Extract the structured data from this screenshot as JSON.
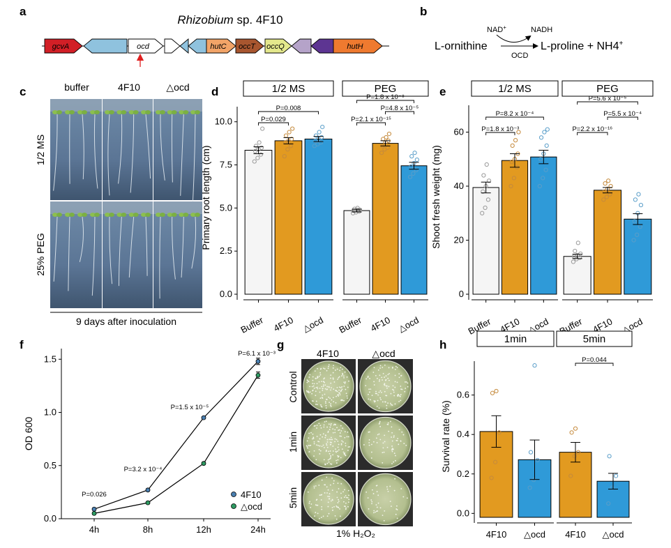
{
  "panel_labels": {
    "a": "a",
    "b": "b",
    "c": "c",
    "d": "d",
    "e": "e",
    "f": "f",
    "g": "g",
    "h": "h"
  },
  "colors": {
    "buffer": "#f5f5f5",
    "strain_4f10": "#e29a20",
    "ocd": "#2f9ad8"
  },
  "panel_a": {
    "title_italic": "Rhizobium",
    "title_rest": " sp. 4F10",
    "genes": [
      {
        "label": "gcvA",
        "color": "#d21f26",
        "italic": true
      },
      {
        "label": "",
        "color": "#8fc2de",
        "italic": false
      },
      {
        "label": "ocd",
        "color": "#ffffff",
        "italic": true
      },
      {
        "label": "",
        "color": "#ffffff",
        "italic": false
      },
      {
        "label": "",
        "color": "#8fc2de",
        "italic": false
      },
      {
        "label": "",
        "color": "#8fc2de",
        "italic": false
      },
      {
        "label": "hutC",
        "color": "#f2a468",
        "italic": true
      },
      {
        "label": "occT",
        "color": "#a8562f",
        "italic": true
      },
      {
        "label": "occQ",
        "color": "#e4e88c",
        "italic": true
      },
      {
        "label": "",
        "color": "#b5a3c9",
        "italic": false
      },
      {
        "label": "",
        "color": "#5d3592",
        "italic": false
      },
      {
        "label": "hutH",
        "color": "#ef7a2f",
        "italic": true
      }
    ]
  },
  "panel_b": {
    "substrate": "L-ornithine",
    "product": "L-proline + NH4",
    "cofactor_in": "NAD",
    "cofactor_out": "NADH",
    "enzyme": "OCD",
    "plus": "+"
  },
  "panel_c": {
    "columns": [
      "buffer",
      "4F10",
      "△ocd"
    ],
    "rows": [
      "1/2 MS",
      "25% PEG"
    ],
    "caption": "9 days after inoculation"
  },
  "panel_d": {
    "chart_data": {
      "type": "bar",
      "ylabel": "Primary root length (cm)",
      "ylim": [
        0,
        11.2
      ],
      "yticks": [
        0.0,
        2.5,
        5.0,
        7.5,
        10.0
      ],
      "ytick_labels": [
        "0.0",
        "2.5",
        "5.0",
        "7.5",
        "10.0"
      ],
      "facets": [
        {
          "title": "1/2 MS",
          "categories": [
            "Buffer",
            "4F10",
            "△ocd"
          ],
          "values": [
            8.35,
            8.9,
            9.0
          ],
          "errors": [
            0.2,
            0.18,
            0.15
          ],
          "points": [
            [
              7.7,
              7.9,
              8.1,
              8.3,
              8.4,
              8.5,
              8.6,
              8.8,
              9.6
            ],
            [
              8.0,
              8.4,
              8.6,
              8.8,
              8.9,
              9.0,
              9.2,
              9.4,
              9.6
            ],
            [
              8.6,
              8.7,
              8.8,
              8.9,
              9.0,
              9.1,
              9.2,
              9.4,
              9.7
            ]
          ],
          "annotations": [
            {
              "from": 0,
              "to": 2,
              "text": "P=0.008",
              "level": 2
            },
            {
              "from": 0,
              "to": 1,
              "text": "P=0.029",
              "level": 1
            }
          ]
        },
        {
          "title": "PEG",
          "categories": [
            "Buffer",
            "4F10",
            "△ocd"
          ],
          "values": [
            4.85,
            8.75,
            7.45
          ],
          "errors": [
            0.08,
            0.15,
            0.2
          ],
          "points": [
            [
              4.7,
              4.75,
              4.8,
              4.85,
              4.9,
              4.9,
              4.95,
              5.0
            ],
            [
              8.2,
              8.4,
              8.5,
              8.6,
              8.8,
              8.9,
              9.0,
              9.1,
              9.3
            ],
            [
              6.8,
              7.0,
              7.2,
              7.4,
              7.6,
              7.8,
              8.0,
              8.2
            ]
          ],
          "annotations": [
            {
              "from": 0,
              "to": 2,
              "text": "P=1.8 x 10⁻⁸",
              "level": 3
            },
            {
              "from": 1,
              "to": 2,
              "text": "P=4.8 x 10⁻⁵",
              "level": 2
            },
            {
              "from": 0,
              "to": 1,
              "text": "P=2.1 x 10⁻¹⁵",
              "level": 1
            }
          ]
        }
      ]
    }
  },
  "panel_e": {
    "chart_data": {
      "type": "bar",
      "ylabel": "Shoot fresh weight (mg)",
      "ylim": [
        0,
        72
      ],
      "yticks": [
        0,
        20,
        40,
        60
      ],
      "ytick_labels": [
        "0",
        "20",
        "40",
        "60"
      ],
      "facets": [
        {
          "title": "1/2 MS",
          "categories": [
            "Buffer",
            "4F10",
            "△ocd"
          ],
          "values": [
            39.5,
            49.5,
            50.8
          ],
          "errors": [
            2.0,
            2.5,
            2.5
          ],
          "points": [
            [
              30,
              32,
              35,
              38,
              40,
              42,
              44,
              48
            ],
            [
              40,
              43,
              47,
              49,
              50,
              52,
              55,
              57,
              60
            ],
            [
              40,
              43,
              46,
              50,
              52,
              55,
              58,
              60,
              61
            ]
          ],
          "annotations": [
            {
              "from": 0,
              "to": 2,
              "text": "P=8.2 x 10⁻⁴",
              "level": 2
            },
            {
              "from": 0,
              "to": 1,
              "text": "P=1.8 x 10⁻³",
              "level": 1
            }
          ]
        },
        {
          "title": "PEG",
          "categories": [
            "Buffer",
            "4F10",
            "△ocd"
          ],
          "values": [
            14.0,
            38.5,
            27.8
          ],
          "errors": [
            0.8,
            1.0,
            2.0
          ],
          "points": [
            [
              12,
              13,
              13.5,
              14,
              14.5,
              15,
              16,
              19
            ],
            [
              35,
              36,
              37,
              38,
              39,
              40,
              41,
              42
            ],
            [
              20,
              22,
              25,
              27,
              30,
              33,
              35,
              37
            ]
          ],
          "annotations": [
            {
              "from": 0,
              "to": 2,
              "text": "P=5.6 x 10⁻⁵",
              "level": 3
            },
            {
              "from": 1,
              "to": 2,
              "text": "P=5.5 x 10⁻⁴",
              "level": 2
            },
            {
              "from": 0,
              "to": 1,
              "text": "P=2.2 x 10⁻¹⁶",
              "level": 1
            }
          ]
        }
      ]
    }
  },
  "panel_f": {
    "chart_data": {
      "type": "line",
      "xlabel": "",
      "ylabel": "OD 600",
      "categories": [
        "4h",
        "8h",
        "12h",
        "24h"
      ],
      "ylim": [
        0,
        1.6
      ],
      "yticks": [
        0.0,
        0.5,
        1.0,
        1.5
      ],
      "ytick_labels": [
        "0.0",
        "0.5",
        "1.0",
        "1.5"
      ],
      "series": [
        {
          "name": "4F10",
          "values": [
            0.09,
            0.27,
            0.95,
            1.48
          ],
          "errors": [
            0.01,
            0.01,
            0.01,
            0.03
          ],
          "color": "#4a7fb0"
        },
        {
          "name": "△ocd",
          "values": [
            0.05,
            0.15,
            0.52,
            1.35
          ],
          "errors": [
            0.01,
            0.01,
            0.01,
            0.03
          ],
          "color": "#2e9a62"
        }
      ],
      "annotations": [
        "P=0.026",
        "P=3.2 x 10⁻⁴",
        "P=1.5 x 10⁻⁵",
        "P=6.1 x 10⁻³"
      ]
    }
  },
  "panel_g": {
    "columns": [
      "4F10",
      "△ocd"
    ],
    "rows": [
      "Control",
      "1min",
      "5min"
    ],
    "caption": "1% H₂O₂"
  },
  "panel_h": {
    "chart_data": {
      "type": "bar",
      "ylabel": "Survival rate (%)",
      "ylim": [
        -0.02,
        0.8
      ],
      "yticks": [
        0.0,
        0.2,
        0.4,
        0.6
      ],
      "ytick_labels": [
        "0.0",
        "0.2",
        "0.4",
        "0.6"
      ],
      "facets": [
        {
          "title": "1min",
          "categories": [
            "4F10",
            "△ocd"
          ],
          "values": [
            0.415,
            0.272
          ],
          "errors": [
            0.08,
            0.1
          ],
          "points": [
            [
              0.18,
              0.26,
              0.41,
              0.61,
              0.62
            ],
            [
              0.13,
              0.17,
              0.27,
              0.31,
              0.75
            ]
          ],
          "annotations": []
        },
        {
          "title": "5min",
          "categories": [
            "4F10",
            "△ocd"
          ],
          "values": [
            0.31,
            0.163
          ],
          "errors": [
            0.05,
            0.04
          ],
          "points": [
            [
              0.19,
              0.29,
              0.31,
              0.41,
              0.43
            ],
            [
              0.05,
              0.13,
              0.19,
              0.29
            ]
          ],
          "annotations": [
            {
              "from": 0,
              "to": 1,
              "text": "P=0.044",
              "level": 1
            }
          ]
        }
      ]
    }
  }
}
